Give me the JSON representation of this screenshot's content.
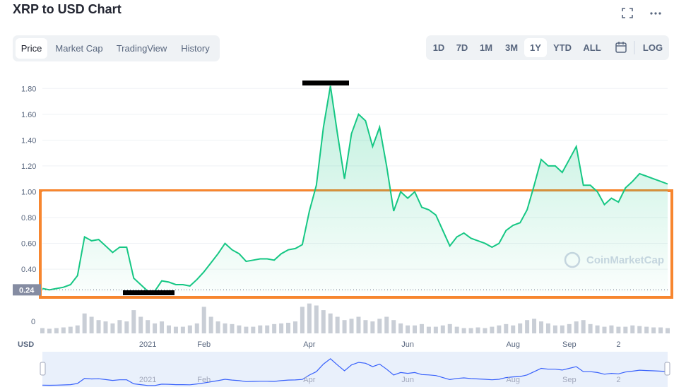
{
  "header": {
    "title": "XRP to USD Chart"
  },
  "tabs": {
    "items": [
      "Price",
      "Market Cap",
      "TradingView",
      "History"
    ],
    "selected": 0
  },
  "ranges": {
    "items": [
      "1D",
      "7D",
      "1M",
      "3M",
      "1Y",
      "YTD",
      "ALL"
    ],
    "selected": 4,
    "log": "LOG"
  },
  "chart_data": {
    "type": "line",
    "categories": [
      null,
      null,
      null,
      null,
      null,
      null,
      null,
      null,
      null,
      null,
      null,
      null,
      null,
      null,
      null,
      "2021",
      null,
      null,
      null,
      null,
      null,
      null,
      null,
      "Feb",
      null,
      null,
      null,
      null,
      null,
      null,
      null,
      null,
      null,
      null,
      null,
      null,
      null,
      null,
      "Apr",
      null,
      null,
      null,
      null,
      null,
      null,
      null,
      null,
      null,
      null,
      null,
      null,
      null,
      "Jun",
      null,
      null,
      null,
      null,
      null,
      null,
      null,
      null,
      null,
      null,
      null,
      null,
      null,
      null,
      "Aug",
      null,
      null,
      null,
      null,
      null,
      null,
      null,
      "Sep",
      null,
      null,
      null,
      null,
      null,
      null,
      "2",
      null,
      null,
      null,
      null,
      null,
      null,
      null
    ],
    "series": [
      {
        "color": "#16c784",
        "values": [
          0.25,
          0.24,
          0.25,
          0.26,
          0.28,
          0.35,
          0.65,
          0.62,
          0.63,
          0.58,
          0.53,
          0.57,
          0.57,
          0.33,
          0.28,
          0.23,
          0.23,
          0.31,
          0.3,
          0.28,
          0.28,
          0.27,
          0.32,
          0.38,
          0.45,
          0.52,
          0.6,
          0.55,
          0.52,
          0.46,
          0.47,
          0.48,
          0.48,
          0.47,
          0.52,
          0.55,
          0.56,
          0.59,
          0.85,
          1.05,
          1.5,
          1.82,
          1.45,
          1.1,
          1.45,
          1.6,
          1.55,
          1.35,
          1.5,
          1.2,
          0.85,
          1.0,
          0.95,
          1.0,
          0.88,
          0.86,
          0.82,
          0.7,
          0.58,
          0.65,
          0.68,
          0.64,
          0.62,
          0.6,
          0.57,
          0.6,
          0.7,
          0.74,
          0.76,
          0.86,
          1.05,
          1.25,
          1.2,
          1.2,
          1.15,
          1.25,
          1.35,
          1.05,
          1.05,
          1.0,
          0.9,
          0.95,
          0.92,
          1.03,
          1.08,
          1.14,
          1.12,
          1.1,
          1.08,
          1.06
        ]
      }
    ],
    "ylim": [
      0.22,
      1.9
    ],
    "yticks": [
      {
        "value": 0.4,
        "label": "0.40"
      },
      {
        "value": 0.6,
        "label": "0.60"
      },
      {
        "value": 0.8,
        "label": "0.80"
      },
      {
        "value": 1.0,
        "label": "1.00"
      },
      {
        "value": 1.2,
        "label": "1.20"
      },
      {
        "value": 1.4,
        "label": "1.40"
      },
      {
        "value": 1.6,
        "label": "1.60"
      },
      {
        "value": 1.8,
        "label": "1.80"
      }
    ],
    "grid": true,
    "current": {
      "value": 0.24,
      "label": "0.24"
    },
    "watermark": "CoinMarketCap",
    "currency": "USD",
    "volume": {
      "color": "#c9ced6",
      "ylim": [
        0,
        50
      ],
      "yticks": [
        0
      ],
      "values": [
        8,
        7,
        8,
        9,
        10,
        12,
        30,
        25,
        20,
        18,
        15,
        20,
        18,
        35,
        25,
        20,
        15,
        18,
        12,
        10,
        10,
        12,
        15,
        40,
        25,
        18,
        15,
        14,
        12,
        10,
        10,
        12,
        12,
        14,
        15,
        16,
        18,
        40,
        45,
        42,
        35,
        30,
        25,
        20,
        22,
        25,
        20,
        18,
        22,
        25,
        20,
        15,
        12,
        12,
        14,
        10,
        10,
        12,
        14,
        10,
        8,
        8,
        9,
        8,
        10,
        12,
        14,
        12,
        15,
        20,
        22,
        18,
        15,
        12,
        12,
        14,
        18,
        20,
        14,
        12,
        10,
        12,
        10,
        10,
        12,
        11,
        10,
        9,
        9,
        8
      ]
    }
  }
}
